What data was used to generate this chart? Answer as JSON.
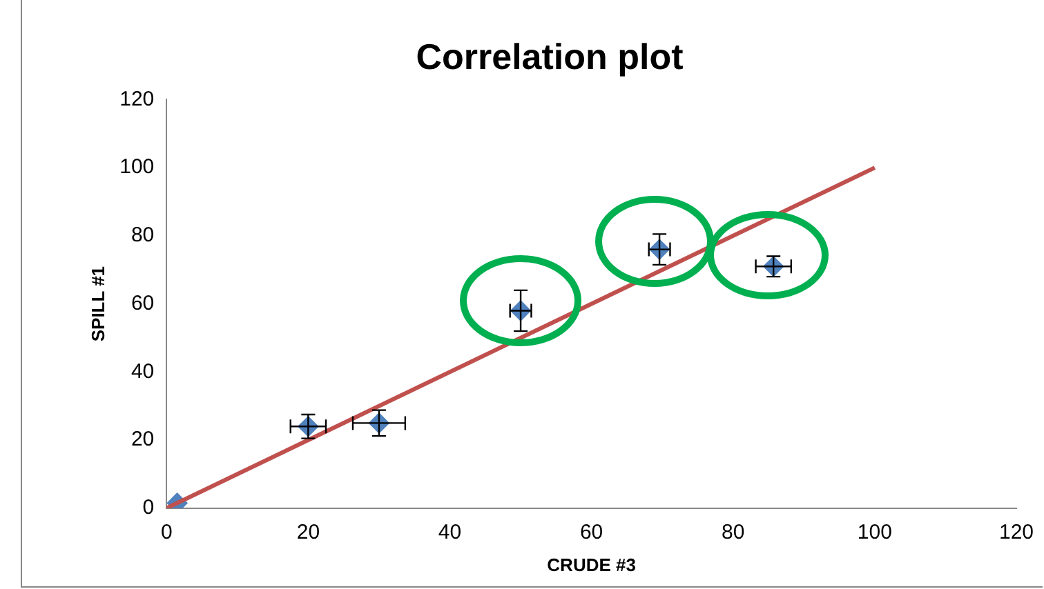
{
  "chart_data": {
    "type": "scatter",
    "title": "Correlation plot",
    "xlabel": "CRUDE #3",
    "ylabel": "SPILL #1",
    "xlim": [
      0,
      120
    ],
    "xticks": [
      0,
      20,
      40,
      60,
      80,
      100,
      120
    ],
    "ylim": [
      0,
      120
    ],
    "yticks": [
      0,
      20,
      40,
      60,
      80,
      100,
      120
    ],
    "grid": false,
    "legend": false,
    "marker": "diamond",
    "series": [
      {
        "type": "scatter",
        "color": "#4f81bd",
        "x": [
          1.5,
          20,
          30,
          50,
          69.6,
          85.7
        ],
        "values": [
          1.5,
          24,
          25,
          58,
          76,
          71
        ],
        "errors": [
          null,
          3.5,
          3.8,
          6,
          4.5,
          3
        ],
        "xerrors": [
          null,
          2.5,
          3.7,
          1.5,
          1.5,
          2.5
        ]
      },
      {
        "type": "line",
        "color": "#c0504d",
        "marker": "none",
        "x": [
          0,
          100
        ],
        "values": [
          0,
          100
        ]
      }
    ]
  }
}
